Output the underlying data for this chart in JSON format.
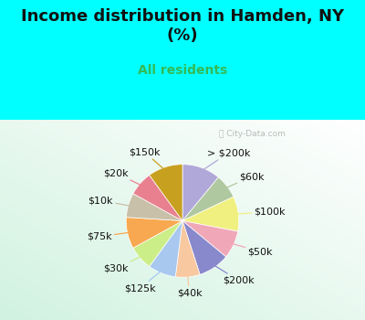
{
  "title": "Income distribution in Hamden, NY\n(%)",
  "subtitle": "All residents",
  "bg_cyan": "#00FFFF",
  "labels": [
    "> $200k",
    "$60k",
    "$100k",
    "$50k",
    "$200k",
    "$40k",
    "$125k",
    "$30k",
    "$75k",
    "$10k",
    "$20k",
    "$150k"
  ],
  "values": [
    11,
    7,
    10,
    8,
    9,
    7,
    8,
    7,
    9,
    7,
    7,
    10
  ],
  "colors": [
    "#b0a8d8",
    "#b0c8a0",
    "#f0f080",
    "#f0a8b8",
    "#8888cc",
    "#f8c8a0",
    "#a8c8f0",
    "#ccee88",
    "#f8a850",
    "#c8c0a8",
    "#e88090",
    "#c8a020"
  ],
  "label_fontsize": 8,
  "title_fontsize": 13,
  "subtitle_fontsize": 10,
  "watermark": "City-Data.com"
}
